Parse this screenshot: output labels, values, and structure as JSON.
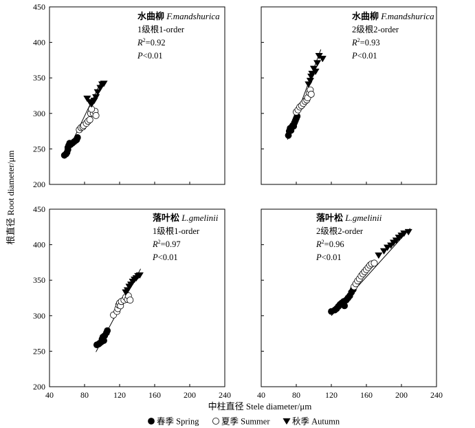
{
  "figure": {
    "ylabel": "根直径  Root diameter/μm",
    "xlabel": "中柱直径  Stele diameter/μm",
    "legend": [
      {
        "marker": "filled-circle",
        "label": "春季 Spring"
      },
      {
        "marker": "open-circle",
        "label": "夏季 Summer"
      },
      {
        "marker": "filled-triangle-down",
        "label": "秋季 Autumn"
      }
    ]
  },
  "chart_data": [
    {
      "type": "scatter",
      "species_cn": "水曲柳",
      "species_latin": "F.mandshurica",
      "order_label": "1级根1-order",
      "r2_label": "=0.92",
      "p_label": "<0.01",
      "xlim": [
        40,
        240
      ],
      "ylim": [
        200,
        450
      ],
      "xticks": [
        "40",
        "80",
        "120",
        "160",
        "200",
        "240"
      ],
      "yticks": [
        "200",
        "250",
        "300",
        "350",
        "400",
        "450"
      ],
      "fit_line": [
        [
          57,
          237
        ],
        [
          99,
          345
        ]
      ],
      "series": [
        {
          "name": "春季 Spring",
          "marker": "filled-circle",
          "x": [
            57,
            59,
            60,
            61,
            61,
            62,
            63,
            64,
            66,
            68,
            70,
            71,
            72
          ],
          "y": [
            241,
            243,
            245,
            249,
            252,
            255,
            258,
            256,
            258,
            260,
            262,
            263,
            266
          ]
        },
        {
          "name": "夏季 Summer",
          "marker": "open-circle",
          "x": [
            74,
            76,
            78,
            79,
            82,
            84,
            86,
            87,
            90,
            92,
            93,
            88
          ],
          "y": [
            277,
            280,
            281,
            283,
            286,
            289,
            291,
            300,
            300,
            303,
            297,
            306
          ]
        },
        {
          "name": "秋季 Autumn",
          "marker": "filled-triangle-down",
          "x": [
            83,
            86,
            88,
            91,
            93,
            95,
            98,
            100,
            102
          ],
          "y": [
            321,
            316,
            313,
            318,
            323,
            330,
            336,
            341,
            342
          ]
        }
      ]
    },
    {
      "type": "scatter",
      "species_cn": "水曲柳",
      "species_latin": "F.mandshurica",
      "order_label": "2级根2-order",
      "r2_label": "=0.93",
      "p_label": "<0.01",
      "xlim": [
        40,
        240
      ],
      "ylim": [
        200,
        450
      ],
      "xticks": [
        "40",
        "80",
        "120",
        "160",
        "200",
        "240"
      ],
      "yticks": [
        "200",
        "250",
        "300",
        "350",
        "400",
        "450"
      ],
      "fit_line": [
        [
          70,
          263
        ],
        [
          108,
          390
        ]
      ],
      "series": [
        {
          "name": "春季 Spring",
          "marker": "filled-circle",
          "x": [
            71,
            72,
            73,
            74,
            75,
            76,
            77,
            78,
            79,
            80,
            81
          ],
          "y": [
            269,
            275,
            279,
            276,
            281,
            283,
            282,
            287,
            290,
            293,
            296
          ]
        },
        {
          "name": "夏季 Summer",
          "marker": "open-circle",
          "x": [
            80,
            82,
            84,
            86,
            88,
            90,
            92,
            93,
            95,
            96,
            97
          ],
          "y": [
            302,
            305,
            309,
            311,
            314,
            317,
            319,
            322,
            329,
            333,
            327
          ]
        },
        {
          "name": "秋季 Autumn",
          "marker": "filled-triangle-down",
          "x": [
            94,
            96,
            97,
            98,
            100,
            102,
            104,
            106,
            110
          ],
          "y": [
            341,
            346,
            352,
            356,
            363,
            359,
            371,
            381,
            377
          ]
        }
      ]
    },
    {
      "type": "scatter",
      "species_cn": "落叶松",
      "species_latin": "L.gmelinii",
      "order_label": "1级根1-order",
      "r2_label": "=0.97",
      "p_label": "<0.01",
      "xlim": [
        40,
        240
      ],
      "ylim": [
        200,
        450
      ],
      "xticks": [
        "40",
        "80",
        "120",
        "160",
        "200",
        "240"
      ],
      "yticks": [
        "200",
        "250",
        "300",
        "350",
        "400",
        "450"
      ],
      "fit_line": [
        [
          93,
          249
        ],
        [
          144,
          366
        ]
      ],
      "series": [
        {
          "name": "春季 Spring",
          "marker": "filled-circle",
          "x": [
            94,
            96,
            97,
            99,
            100,
            101,
            102,
            103,
            105,
            106
          ],
          "y": [
            259,
            260,
            261,
            263,
            267,
            270,
            265,
            272,
            276,
            279
          ]
        },
        {
          "name": "夏季 Summer",
          "marker": "open-circle",
          "x": [
            113,
            117,
            118,
            119,
            120,
            121,
            122,
            125,
            127,
            129,
            130,
            132
          ],
          "y": [
            301,
            306,
            310,
            315,
            318,
            314,
            320,
            322,
            326,
            323,
            328,
            322
          ]
        },
        {
          "name": "秋季 Autumn",
          "marker": "filled-triangle-down",
          "x": [
            127,
            129,
            131,
            133,
            135,
            137,
            139,
            141,
            143
          ],
          "y": [
            333,
            336,
            341,
            344,
            348,
            351,
            353,
            356,
            357
          ]
        }
      ]
    },
    {
      "type": "scatter",
      "species_cn": "落叶松",
      "species_latin": "L.gmelinii",
      "order_label": "2级根2-order",
      "r2_label": "=0.96",
      "p_label": "<0.01",
      "xlim": [
        40,
        240
      ],
      "ylim": [
        200,
        450
      ],
      "xticks": [
        "40",
        "80",
        "120",
        "160",
        "200",
        "240"
      ],
      "yticks": [
        "200",
        "250",
        "300",
        "350",
        "400",
        "450"
      ],
      "fit_line": [
        [
          120,
          300
        ],
        [
          210,
          423
        ]
      ],
      "series": [
        {
          "name": "春季 Spring",
          "marker": "filled-circle",
          "x": [
            120,
            124,
            126,
            128,
            130,
            132,
            134,
            135,
            137,
            139,
            141,
            143,
            145
          ],
          "y": [
            306,
            308,
            310,
            313,
            316,
            318,
            320,
            314,
            322,
            325,
            328,
            333,
            337
          ]
        },
        {
          "name": "夏季 Summer",
          "marker": "open-circle",
          "x": [
            146,
            148,
            150,
            152,
            154,
            156,
            158,
            160,
            162,
            164,
            166,
            169
          ],
          "y": [
            341,
            345,
            349,
            352,
            356,
            359,
            362,
            365,
            368,
            371,
            373,
            374
          ]
        },
        {
          "name": "秋季 Autumn",
          "marker": "filled-triangle-down",
          "x": [
            174,
            180,
            184,
            188,
            191,
            194,
            197,
            200,
            203,
            208
          ],
          "y": [
            385,
            391,
            396,
            399,
            403,
            406,
            410,
            413,
            416,
            418
          ]
        }
      ]
    }
  ]
}
